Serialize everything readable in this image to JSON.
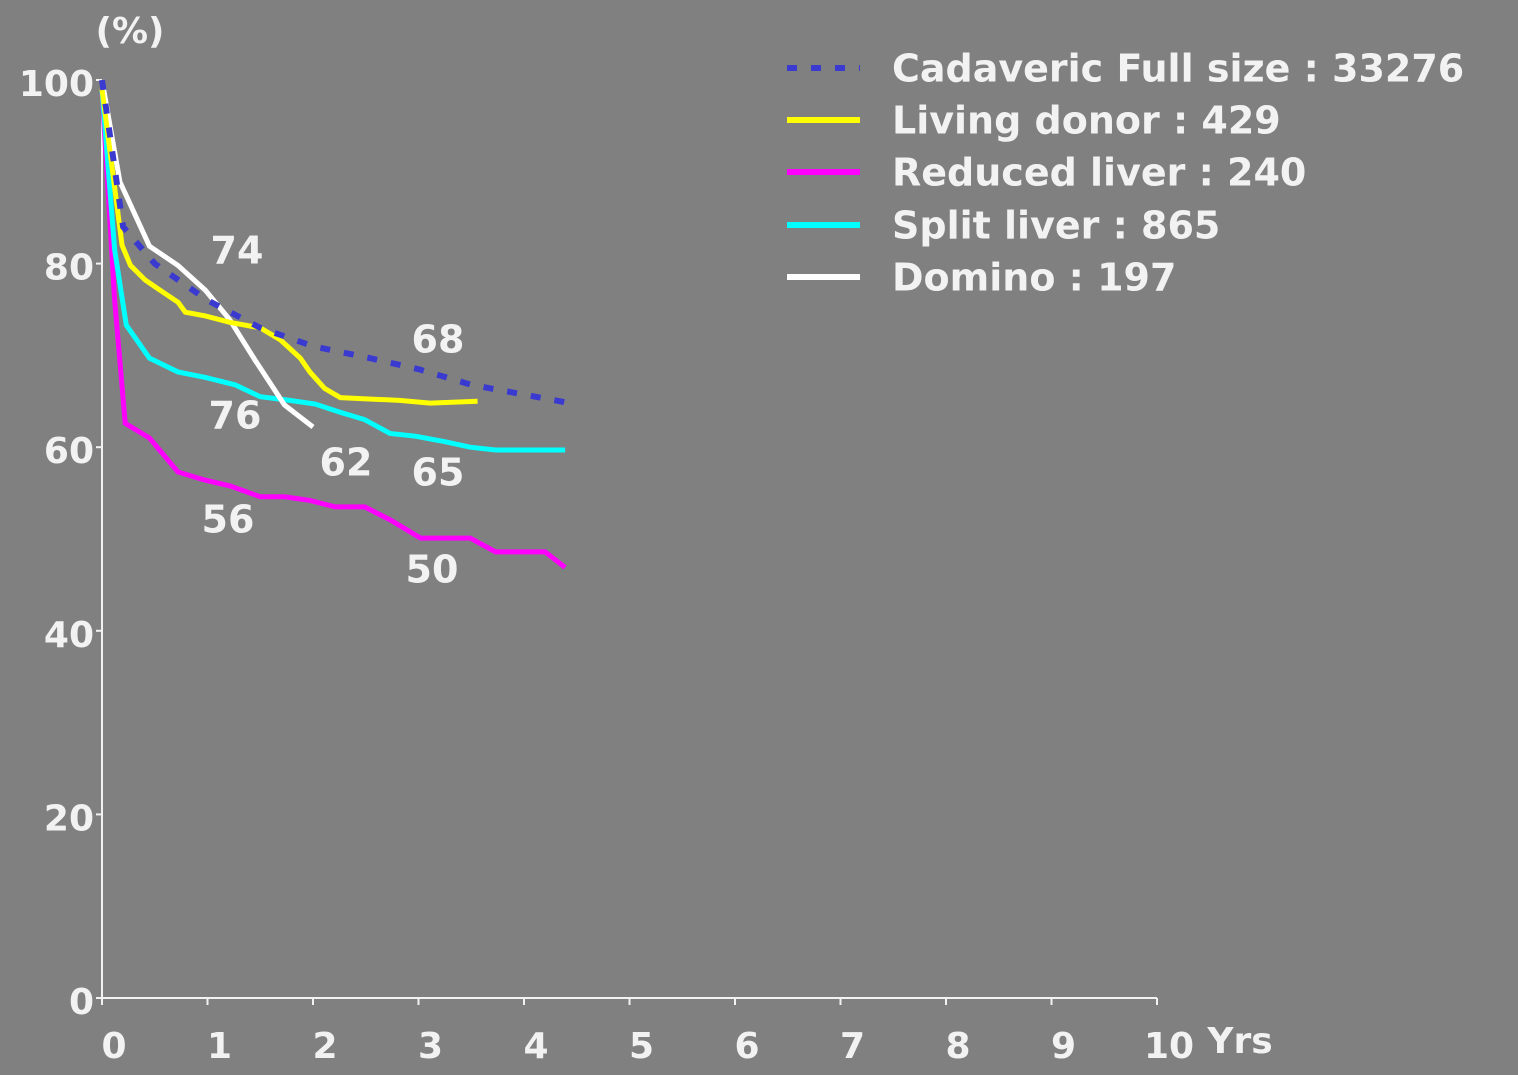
{
  "chart_data": {
    "type": "line",
    "y_label": "(%)",
    "x_label": "Yrs",
    "xlim": [
      0,
      10
    ],
    "ylim": [
      0,
      100
    ],
    "xticks": [
      0,
      1,
      2,
      3,
      4,
      5,
      6,
      7,
      8,
      9,
      10
    ],
    "yticks": [
      0,
      20,
      40,
      60,
      80,
      100
    ],
    "grid": false,
    "legend": "upper right",
    "series": [
      {
        "name": "Cadaveric Full size : 33276",
        "color": "#3a3ad0",
        "style": "dotted",
        "x": [
          0,
          0.2,
          0.5,
          1,
          1.5,
          2,
          2.5,
          3,
          3.5,
          4.39
        ],
        "values": [
          100,
          84,
          80,
          76,
          73,
          71,
          69.8,
          68.5,
          66.8,
          64.9
        ]
      },
      {
        "name": "Living donor : 429",
        "color": "#ffff00",
        "style": "solid",
        "x": [
          0,
          0.19,
          0.27,
          0.41,
          0.55,
          0.72,
          0.79,
          0.98,
          1.21,
          1.5,
          1.69,
          1.88,
          1.97,
          2.11,
          2.26,
          2.82,
          3.11,
          3.56
        ],
        "values": [
          99,
          82,
          79.8,
          78.2,
          77.1,
          75.8,
          74.7,
          74.3,
          73.6,
          73,
          71.7,
          69.7,
          68.2,
          66.4,
          65.4,
          65.1,
          64.8,
          65
        ]
      },
      {
        "name": "Reduced liver : 240",
        "color": "#ff00ff",
        "style": "solid",
        "x": [
          0,
          0.12,
          0.22,
          0.45,
          0.72,
          0.98,
          1.21,
          1.5,
          1.73,
          1.97,
          2.21,
          2.49,
          2.73,
          3.02,
          3.49,
          3.73,
          4.2,
          4.39
        ],
        "values": [
          98.9,
          76,
          62.6,
          61,
          57.3,
          56.4,
          55.8,
          54.6,
          54.6,
          54.2,
          53.5,
          53.5,
          52.1,
          50.1,
          50.1,
          48.6,
          48.6,
          46.9
        ]
      },
      {
        "name": "Split liver : 865",
        "color": "#00ffff",
        "style": "solid",
        "x": [
          0,
          0.12,
          0.23,
          0.45,
          0.72,
          0.98,
          1.26,
          1.5,
          1.78,
          2.02,
          2.26,
          2.49,
          2.73,
          2.97,
          3.25,
          3.49,
          3.73,
          4.39
        ],
        "values": [
          98.9,
          81.5,
          73.3,
          69.7,
          68.2,
          67.6,
          66.8,
          65.5,
          65.1,
          64.7,
          63.8,
          63,
          61.5,
          61.2,
          60.6,
          60,
          59.7,
          59.7
        ]
      },
      {
        "name": "Domino : 197",
        "color": "#ffffff",
        "style": "solid",
        "x": [
          0,
          0.17,
          0.45,
          0.72,
          0.98,
          1.21,
          1.45,
          1.73,
          2.0
        ],
        "values": [
          100,
          88.9,
          81.9,
          79.8,
          77.1,
          73.9,
          69.5,
          64.6,
          62.2
        ]
      }
    ],
    "annotations": [
      "74",
      "68",
      "76",
      "62",
      "65",
      "56",
      "50"
    ]
  }
}
